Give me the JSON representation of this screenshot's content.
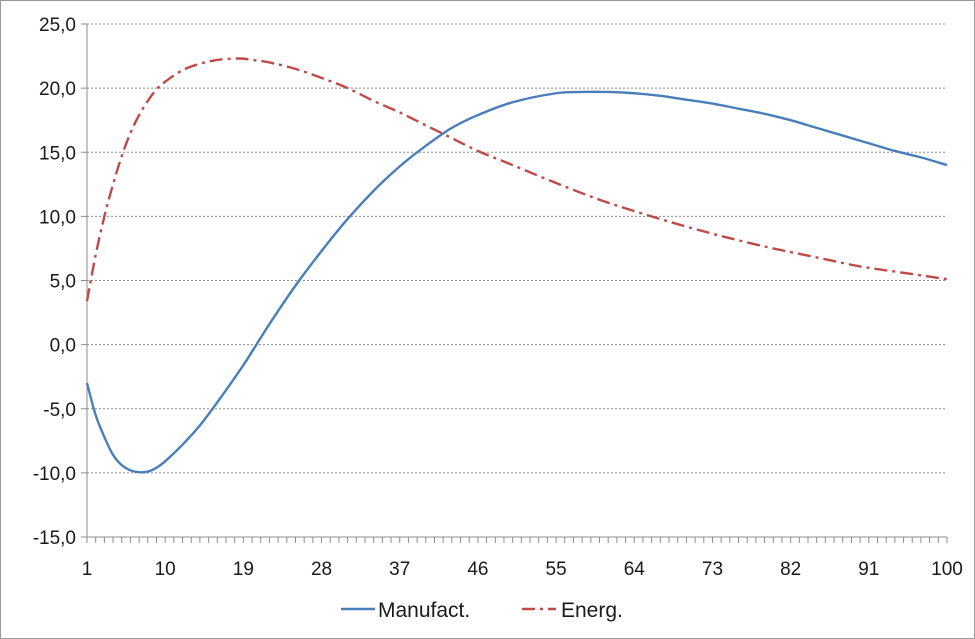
{
  "chart_data": {
    "type": "line",
    "title": "",
    "xlabel": "",
    "ylabel": "",
    "x_range": [
      1,
      100
    ],
    "x_ticks": [
      1,
      10,
      19,
      28,
      37,
      46,
      55,
      64,
      73,
      82,
      91,
      100
    ],
    "x_tick_labels": [
      "1",
      "10",
      "19",
      "28",
      "37",
      "46",
      "55",
      "64",
      "73",
      "82",
      "91",
      "100"
    ],
    "ylim": [
      -15,
      25
    ],
    "y_ticks": [
      -15,
      -10,
      -5,
      0,
      5,
      10,
      15,
      20,
      25
    ],
    "y_tick_labels": [
      "-15,0",
      "-10,0",
      "-5,0",
      "0,0",
      "5,0",
      "10,0",
      "15,0",
      "20,0",
      "25,0"
    ],
    "grid": "horizontal dashed",
    "legend_position": "bottom",
    "series": [
      {
        "name": "Manufact.",
        "color": "#4a7ebb",
        "dash": "solid",
        "x": [
          1,
          2,
          3,
          4,
          5,
          6,
          7,
          8,
          9,
          10,
          12,
          14,
          16,
          19,
          22,
          25,
          28,
          31,
          34,
          37,
          40,
          43,
          46,
          50,
          55,
          58,
          61,
          64,
          67,
          70,
          73,
          76,
          79,
          82,
          85,
          88,
          91,
          94,
          97,
          100
        ],
        "values": [
          -3.0,
          -5.5,
          -7.2,
          -8.6,
          -9.4,
          -9.8,
          -9.95,
          -9.9,
          -9.6,
          -9.1,
          -7.8,
          -6.3,
          -4.5,
          -1.6,
          1.6,
          4.6,
          7.3,
          9.8,
          12.0,
          13.9,
          15.5,
          16.9,
          17.9,
          18.9,
          19.6,
          19.7,
          19.7,
          19.6,
          19.4,
          19.1,
          18.8,
          18.4,
          18.0,
          17.5,
          16.9,
          16.3,
          15.7,
          15.1,
          14.6,
          14.0
        ]
      },
      {
        "name": "Energ.",
        "color": "#be4b48",
        "dash": "dashdot",
        "x": [
          1,
          2,
          3,
          4,
          5,
          6,
          7,
          8,
          9,
          10,
          12,
          14,
          16,
          18,
          19,
          20,
          22,
          25,
          28,
          31,
          34,
          37,
          40,
          43,
          46,
          50,
          55,
          60,
          65,
          70,
          75,
          80,
          85,
          90,
          95,
          100
        ],
        "values": [
          3.4,
          7.0,
          10.0,
          12.5,
          14.7,
          16.5,
          17.9,
          19.0,
          19.9,
          20.5,
          21.4,
          21.9,
          22.2,
          22.3,
          22.3,
          22.2,
          22.0,
          21.5,
          20.8,
          20.0,
          19.0,
          18.1,
          17.1,
          16.1,
          15.1,
          14.0,
          12.6,
          11.3,
          10.2,
          9.2,
          8.3,
          7.5,
          6.8,
          6.1,
          5.6,
          5.1
        ]
      }
    ]
  }
}
